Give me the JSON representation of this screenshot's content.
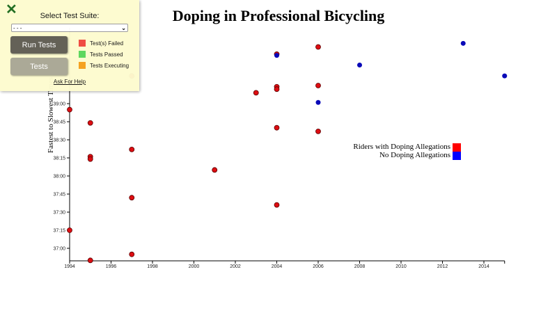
{
  "chart_data": {
    "type": "scatter",
    "title": "Doping in Professional Bicycling",
    "xlabel": "",
    "ylabel": "Fastest to Slowest Times",
    "xlim": [
      1994,
      2015
    ],
    "ylim_seconds": [
      2205,
      2390
    ],
    "x_ticks": [
      "1994",
      "1996",
      "1998",
      "2000",
      "2002",
      "2004",
      "2006",
      "2008",
      "2010",
      "2012",
      "2014"
    ],
    "y_ticks": [
      "37:00",
      "37:15",
      "37:30",
      "37:45",
      "38:00",
      "38:15",
      "38:30",
      "38:45",
      "39:00"
    ],
    "legend": [
      {
        "label": "Riders with Doping Allegations",
        "color": "#ff0000"
      },
      {
        "label": "No Doping Allegations",
        "color": "#0000ff"
      }
    ],
    "legend_position": "right-middle",
    "grid": false,
    "series": [
      {
        "name": "Riders with Doping Allegations",
        "color": "#dd0d12",
        "points": [
          {
            "year": 1994,
            "time": "38:55"
          },
          {
            "year": 1994,
            "time": "37:15"
          },
          {
            "year": 1995,
            "time": "38:44"
          },
          {
            "year": 1995,
            "time": "38:16"
          },
          {
            "year": 1995,
            "time": "38:14"
          },
          {
            "year": 1995,
            "time": "36:50"
          },
          {
            "year": 1997,
            "time": "39:23"
          },
          {
            "year": 1997,
            "time": "38:22"
          },
          {
            "year": 1997,
            "time": "37:42"
          },
          {
            "year": 1997,
            "time": "36:55"
          },
          {
            "year": 2001,
            "time": "38:05"
          },
          {
            "year": 2003,
            "time": "39:09"
          },
          {
            "year": 2004,
            "time": "39:41"
          },
          {
            "year": 2004,
            "time": "39:14"
          },
          {
            "year": 2004,
            "time": "39:12"
          },
          {
            "year": 2004,
            "time": "38:40"
          },
          {
            "year": 2004,
            "time": "37:36"
          },
          {
            "year": 2006,
            "time": "39:47"
          },
          {
            "year": 2006,
            "time": "39:15"
          },
          {
            "year": 2006,
            "time": "38:37"
          }
        ]
      },
      {
        "name": "No Doping Allegations",
        "color": "#0a0ab8",
        "points": [
          {
            "year": 2004,
            "time": "39:40"
          },
          {
            "year": 2006,
            "time": "39:01"
          },
          {
            "year": 2008,
            "time": "39:32"
          },
          {
            "year": 2013,
            "time": "39:50"
          },
          {
            "year": 2015,
            "time": "39:23"
          }
        ]
      }
    ]
  },
  "panel": {
    "close_icon": "✕",
    "select_label": "Select Test Suite:",
    "select_value": "- - -",
    "run_button": "Run Tests",
    "tests_button": "Tests",
    "status_legend": [
      {
        "label": "Test(s) Failed",
        "color": "#f0473d"
      },
      {
        "label": "Tests Passed",
        "color": "#5ad65a"
      },
      {
        "label": "Tests Executing",
        "color": "#f5a01a"
      }
    ],
    "help_link": "Ask For Help"
  }
}
